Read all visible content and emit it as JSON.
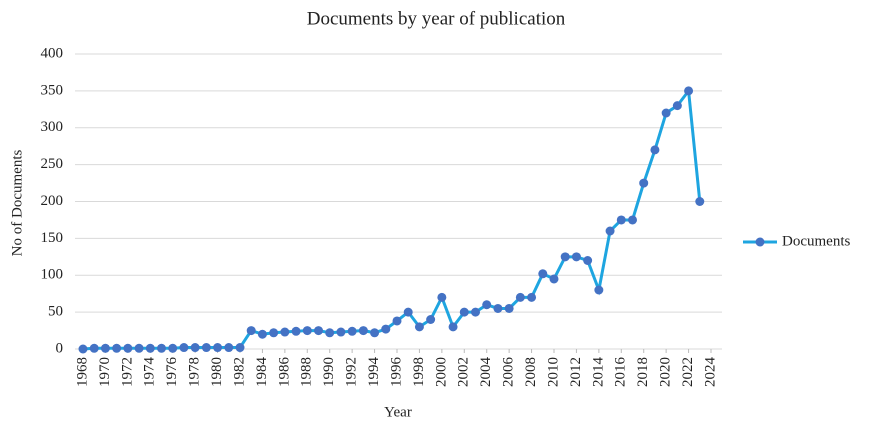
{
  "chart_data": {
    "type": "line",
    "title": "Documents by year of publication",
    "x_label": "Year",
    "y_label": "No of  Documents",
    "x": [
      1968,
      1969,
      1970,
      1971,
      1972,
      1973,
      1974,
      1975,
      1976,
      1977,
      1978,
      1979,
      1980,
      1981,
      1982,
      1983,
      1984,
      1985,
      1986,
      1987,
      1988,
      1989,
      1990,
      1991,
      1992,
      1993,
      1994,
      1995,
      1996,
      1997,
      1998,
      1999,
      2000,
      2001,
      2002,
      2003,
      2004,
      2005,
      2006,
      2007,
      2008,
      2009,
      2010,
      2011,
      2012,
      2013,
      2014,
      2015,
      2016,
      2017,
      2018,
      2019,
      2020,
      2021,
      2022,
      2023
    ],
    "series": [
      {
        "name": "Documents",
        "color": "#1ea5e0",
        "marker_color": "#4472c4",
        "values": [
          0,
          1,
          1,
          1,
          1,
          1,
          1,
          1,
          1,
          2,
          2,
          2,
          2,
          2,
          2,
          25,
          20,
          22,
          23,
          24,
          25,
          25,
          22,
          23,
          24,
          25,
          22,
          27,
          38,
          50,
          30,
          40,
          70,
          30,
          50,
          50,
          60,
          55,
          55,
          70,
          70,
          102,
          95,
          125,
          125,
          120,
          80,
          160,
          175,
          175,
          225,
          270,
          320,
          330,
          350,
          200
        ]
      }
    ],
    "xlim": [
      1968,
      2024
    ],
    "xticks": [
      1968,
      1970,
      1972,
      1974,
      1976,
      1978,
      1980,
      1982,
      1984,
      1986,
      1988,
      1990,
      1992,
      1994,
      1996,
      1998,
      2000,
      2002,
      2004,
      2006,
      2008,
      2010,
      2012,
      2014,
      2016,
      2018,
      2020,
      2022,
      2024
    ],
    "ylim": [
      0,
      400
    ],
    "yticks": [
      0,
      50,
      100,
      150,
      200,
      250,
      300,
      350,
      400
    ],
    "grid": true,
    "legend": "right"
  }
}
